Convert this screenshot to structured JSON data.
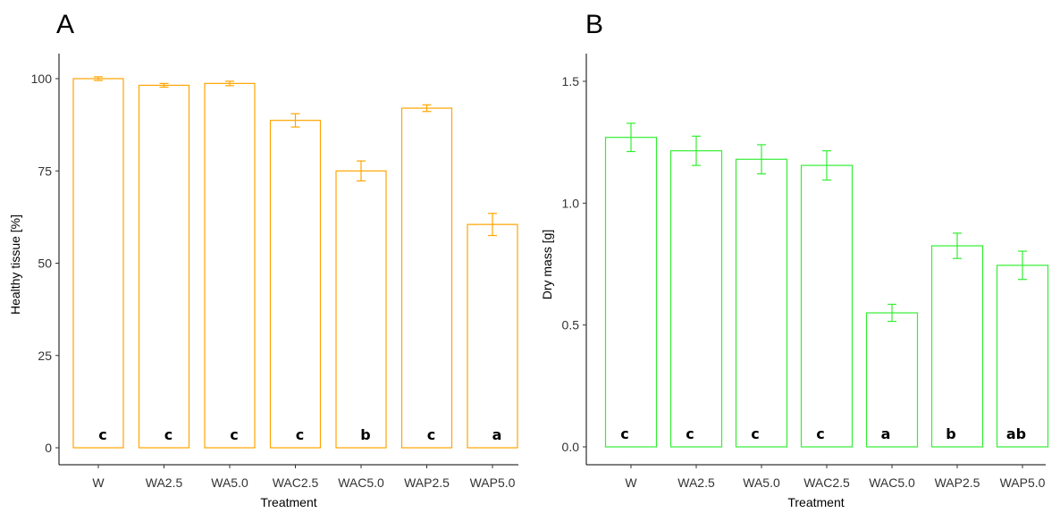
{
  "chart_data": [
    {
      "type": "bar",
      "panel": "A",
      "xlabel": "Treatment",
      "ylabel": "Healthy tissue [%]",
      "categories": [
        "W",
        "WA2.5",
        "WA5.0",
        "WAC2.5",
        "WAC5.0",
        "WAP2.5",
        "WAP5.0"
      ],
      "values": [
        100,
        98.2,
        98.7,
        88.7,
        75.0,
        92.0,
        60.5
      ],
      "errors": [
        0.5,
        0.5,
        0.6,
        1.8,
        2.7,
        0.9,
        3.0
      ],
      "significance": [
        "c",
        "c",
        "c",
        "c",
        "b",
        "c",
        "a"
      ],
      "ylim": [
        0,
        103
      ],
      "yticks": [
        "0",
        "25",
        "50",
        "75",
        "100"
      ],
      "color": "#FFA500",
      "grid": false
    },
    {
      "type": "bar",
      "panel": "B",
      "xlabel": "Treatment",
      "ylabel": "Dry mass [g]",
      "categories": [
        "W",
        "WA2.5",
        "WA5.0",
        "WAC2.5",
        "WAC5.0",
        "WAP2.5",
        "WAP5.0"
      ],
      "values": [
        1.27,
        1.215,
        1.18,
        1.155,
        0.55,
        0.825,
        0.745
      ],
      "errors": [
        0.058,
        0.06,
        0.06,
        0.06,
        0.035,
        0.052,
        0.058
      ],
      "significance": [
        "c",
        "c",
        "c",
        "c",
        "a",
        "b",
        "ab"
      ],
      "ylim": [
        0,
        1.6
      ],
      "yticks": [
        "0.0",
        "0.5",
        "1.0",
        "1.5"
      ],
      "color": "#33EE33",
      "grid": false
    }
  ]
}
